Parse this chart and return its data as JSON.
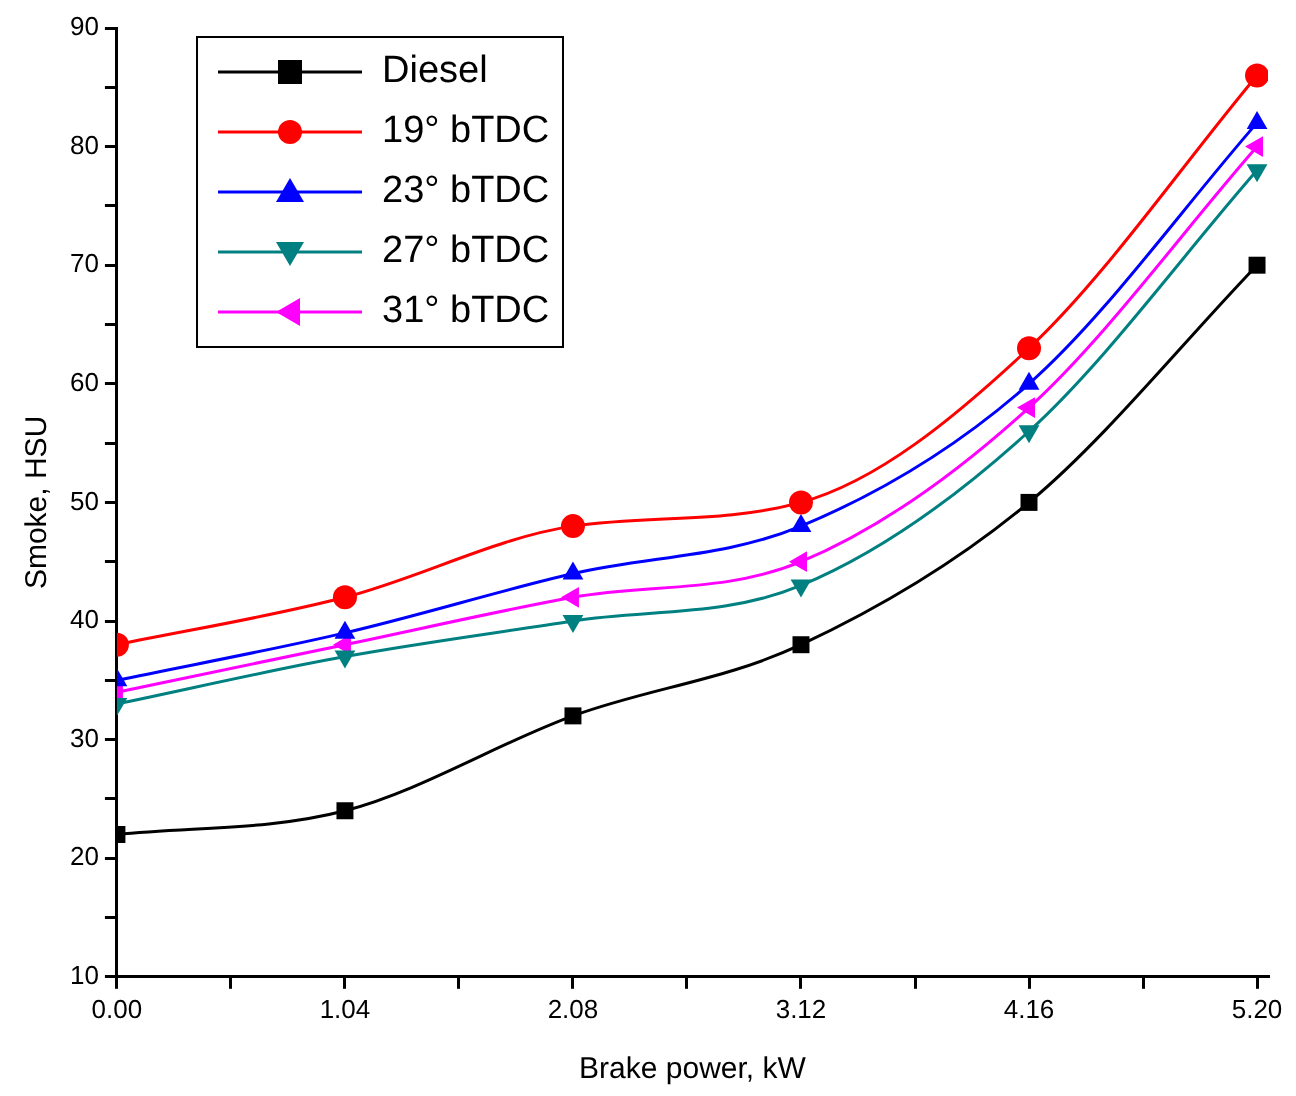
{
  "chart_data": {
    "type": "line",
    "xlabel": "Brake power, kW",
    "ylabel": "Smoke, HSU",
    "x": [
      0,
      1.04,
      2.08,
      3.12,
      4.16,
      5.2
    ],
    "xlim": [
      0,
      5.25
    ],
    "xticks": [
      {
        "value": 0,
        "label": "0.00"
      },
      {
        "value": 0.52,
        "label": null
      },
      {
        "value": 1.04,
        "label": "1.04"
      },
      {
        "value": 1.56,
        "label": null
      },
      {
        "value": 2.08,
        "label": "2.08"
      },
      {
        "value": 2.6,
        "label": null
      },
      {
        "value": 3.12,
        "label": "3.12"
      },
      {
        "value": 3.64,
        "label": null
      },
      {
        "value": 4.16,
        "label": "4.16"
      },
      {
        "value": 4.68,
        "label": null
      },
      {
        "value": 5.2,
        "label": "5.20"
      }
    ],
    "ylim": [
      10,
      90
    ],
    "yticks": [
      10,
      {
        "value": 15,
        "label": null
      },
      20,
      {
        "value": 25,
        "label": null
      },
      30,
      {
        "value": 35,
        "label": null
      },
      40,
      {
        "value": 45,
        "label": null
      },
      50,
      {
        "value": 55,
        "label": null
      },
      60,
      {
        "value": 65,
        "label": null
      },
      70,
      {
        "value": 75,
        "label": null
      },
      80,
      {
        "value": 85,
        "label": null
      },
      90
    ],
    "grid": false,
    "legend": "top left",
    "series": [
      {
        "name": "Diesel",
        "color": "#000000",
        "marker": "square",
        "values": [
          22,
          24,
          32,
          38,
          50,
          70
        ]
      },
      {
        "name": "19° bTDC",
        "color": "#ff0000",
        "marker": "circle",
        "values": [
          38,
          42,
          48,
          50,
          63,
          86
        ]
      },
      {
        "name": "23° bTDC",
        "color": "#0000ff",
        "marker": "triangle",
        "values": [
          35,
          39,
          44,
          48,
          60,
          82
        ]
      },
      {
        "name": "27° bTDC",
        "color": "#008080",
        "marker": "triangle-down",
        "values": [
          33,
          37,
          40,
          43,
          56,
          78
        ]
      },
      {
        "name": "31° bTDC",
        "color": "#ff00ff",
        "marker": "triangle-left",
        "values": [
          34,
          38,
          42,
          45,
          58,
          80
        ]
      }
    ]
  }
}
